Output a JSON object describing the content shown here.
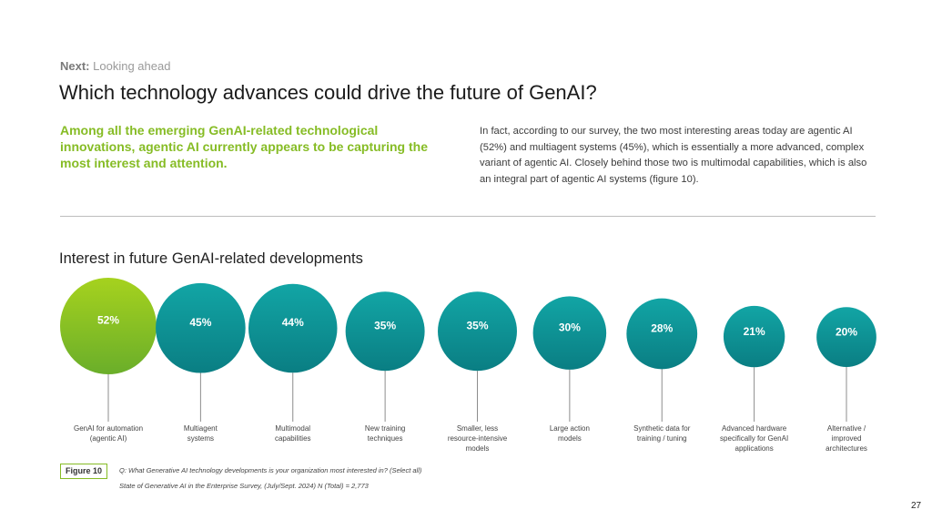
{
  "header": {
    "next_label": "Next:",
    "next_value": "Looking ahead",
    "title": "Which technology advances could drive the future of GenAI?"
  },
  "intro": {
    "lead": "Among all the emerging GenAI-related technological innovations, agentic AI currently appears to be capturing the most interest and attention.",
    "body": "In fact, according to our survey, the two most interesting areas today are agentic AI (52%) and multiagent systems (45%), which is essentially a more advanced, complex variant of agentic AI. Closely behind those two is multimodal capabilities, which is also an integral part of agentic AI systems (figure 10)."
  },
  "chart_data": {
    "type": "bubble",
    "title": "Interest in future GenAI-related developments",
    "unit": "%",
    "categories": [
      [
        "GenAI for automation",
        "(agentic AI)"
      ],
      [
        "Multiagent",
        "systems"
      ],
      [
        "Multimodal",
        "capabilities"
      ],
      [
        "New training",
        "techniques"
      ],
      [
        "Smaller, less",
        "resource-intensive",
        "models"
      ],
      [
        "Large action",
        "models"
      ],
      [
        "Synthetic data for",
        "training / tuning"
      ],
      [
        "Advanced hardware",
        "specifically for GenAI",
        "applications"
      ],
      [
        "Alternative /",
        "improved",
        "architectures"
      ]
    ],
    "values": [
      52,
      45,
      44,
      35,
      35,
      30,
      28,
      21,
      20
    ],
    "highlight_index": 0
  },
  "footer": {
    "figure_label": "Figure 10",
    "question": "Q: What Generative AI technology developments is your organization most interested in? (Select all)",
    "source": "State of Generative AI in the Enterprise Survey, (July/Sept. 2024) N (Total) = 2,773",
    "page_number": "27"
  },
  "colors": {
    "green_accent": "#86bc25",
    "teal_light": "#12a5a5",
    "teal_dark": "#0a7e83",
    "green_light": "#a6d21e",
    "green_dark": "#6aae2a"
  }
}
